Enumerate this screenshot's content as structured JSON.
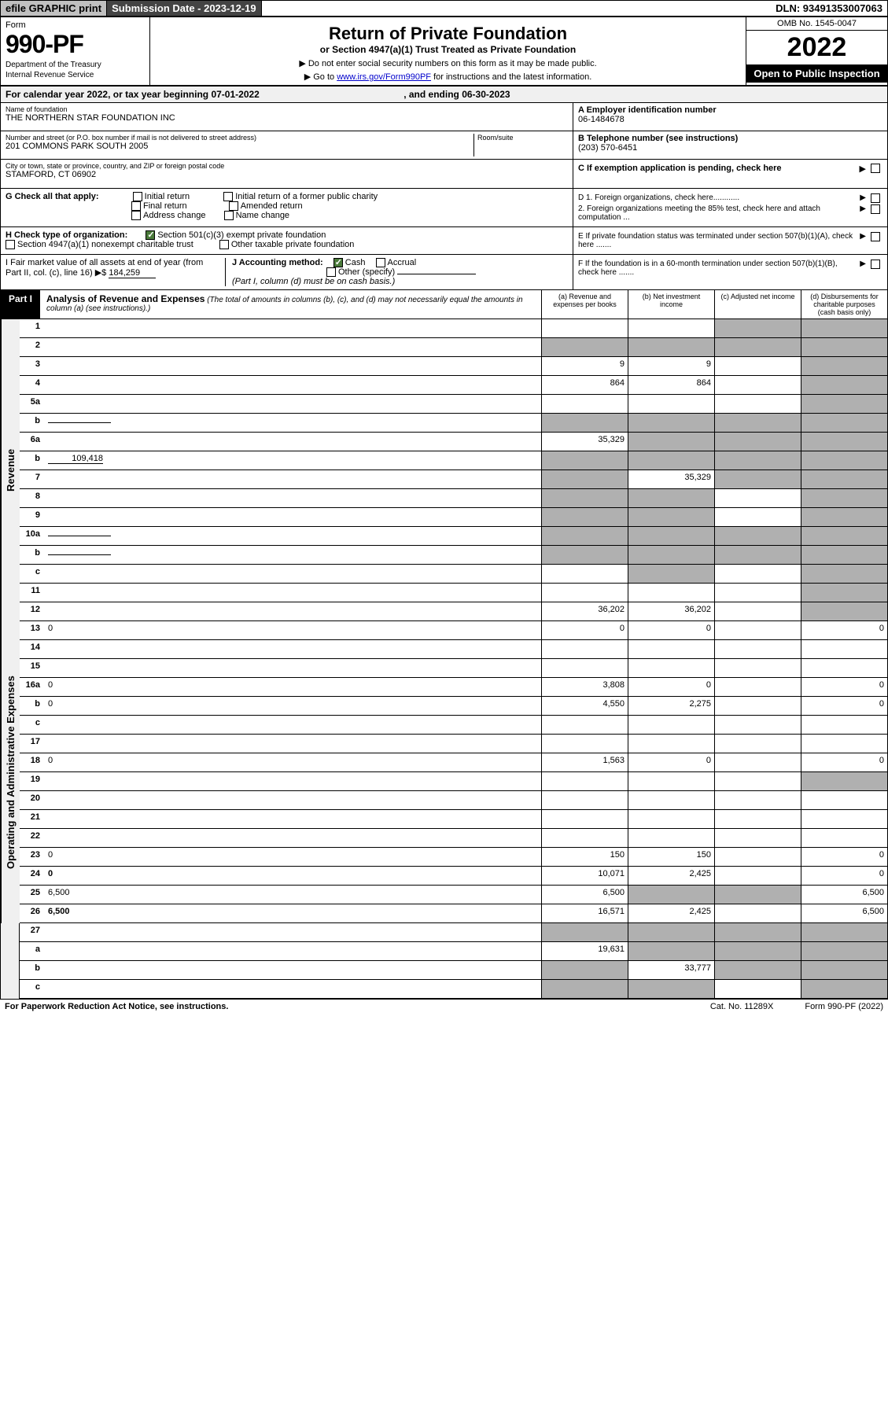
{
  "topbar": {
    "efile": "efile GRAPHIC print",
    "subdate_label": "Submission Date - 2023-12-19",
    "dln": "DLN: 93491353007063"
  },
  "header": {
    "form_word": "Form",
    "form_no": "990-PF",
    "dept": "Department of the Treasury",
    "irs": "Internal Revenue Service",
    "title": "Return of Private Foundation",
    "subtitle": "or Section 4947(a)(1) Trust Treated as Private Foundation",
    "instr1": "▶ Do not enter social security numbers on this form as it may be made public.",
    "instr2_pre": "▶ Go to ",
    "instr2_link": "www.irs.gov/Form990PF",
    "instr2_post": " for instructions and the latest information.",
    "omb": "OMB No. 1545-0047",
    "year": "2022",
    "open": "Open to Public Inspection"
  },
  "calyear": {
    "text_pre": "For calendar year 2022, or tax year beginning ",
    "begin": "07-01-2022",
    "text_mid": ", and ending ",
    "end": "06-30-2023"
  },
  "info": {
    "name_lbl": "Name of foundation",
    "name": "THE NORTHERN STAR FOUNDATION INC",
    "addr_lbl": "Number and street (or P.O. box number if mail is not delivered to street address)",
    "addr": "201 COMMONS PARK SOUTH 2005",
    "room_lbl": "Room/suite",
    "city_lbl": "City or town, state or province, country, and ZIP or foreign postal code",
    "city": "STAMFORD, CT  06902",
    "ein_lbl": "A Employer identification number",
    "ein": "06-1484678",
    "tel_lbl": "B Telephone number (see instructions)",
    "tel": "(203) 570-6451",
    "c_lbl": "C If exemption application is pending, check here",
    "d1": "D 1. Foreign organizations, check here............",
    "d2": "2. Foreign organizations meeting the 85% test, check here and attach computation ...",
    "e_lbl": "E If private foundation status was terminated under section 507(b)(1)(A), check here .......",
    "f_lbl": "F If the foundation is in a 60-month termination under section 507(b)(1)(B), check here ......."
  },
  "checks": {
    "g_lbl": "G Check all that apply:",
    "g_opts": [
      "Initial return",
      "Final return",
      "Address change",
      "Initial return of a former public charity",
      "Amended return",
      "Name change"
    ],
    "h_lbl": "H Check type of organization:",
    "h_opts": [
      "Section 501(c)(3) exempt private foundation",
      "Section 4947(a)(1) nonexempt charitable trust",
      "Other taxable private foundation"
    ],
    "i_lbl": "I Fair market value of all assets at end of year (from Part II, col. (c), line 16) ▶$",
    "i_val": "184,259",
    "j_lbl": "J Accounting method:",
    "j_opts": [
      "Cash",
      "Accrual",
      "Other (specify)"
    ],
    "j_note": "(Part I, column (d) must be on cash basis.)"
  },
  "part1": {
    "label": "Part I",
    "title": "Analysis of Revenue and Expenses",
    "note": "(The total of amounts in columns (b), (c), and (d) may not necessarily equal the amounts in column (a) (see instructions).)",
    "cols": [
      "(a) Revenue and expenses per books",
      "(b) Net investment income",
      "(c) Adjusted net income",
      "(d) Disbursements for charitable purposes (cash basis only)"
    ]
  },
  "sections": {
    "revenue": "Revenue",
    "expenses": "Operating and Administrative Expenses"
  },
  "rows": [
    {
      "n": "1",
      "d": "",
      "a": "",
      "b": "",
      "c": "",
      "shade": [
        "c",
        "d"
      ]
    },
    {
      "n": "2",
      "d": "",
      "a": "",
      "b": "",
      "c": "",
      "shade": [
        "a",
        "b",
        "c",
        "d"
      ],
      "bold_not": true
    },
    {
      "n": "3",
      "d": "",
      "a": "9",
      "b": "9",
      "c": "",
      "shade": [
        "d"
      ]
    },
    {
      "n": "4",
      "d": "",
      "a": "864",
      "b": "864",
      "c": "",
      "shade": [
        "d"
      ]
    },
    {
      "n": "5a",
      "d": "",
      "a": "",
      "b": "",
      "c": "",
      "shade": [
        "d"
      ]
    },
    {
      "n": "b",
      "d": "",
      "a": "",
      "b": "",
      "c": "",
      "shade": [
        "a",
        "b",
        "c",
        "d"
      ],
      "inline": true
    },
    {
      "n": "6a",
      "d": "",
      "a": "35,329",
      "b": "",
      "c": "",
      "shade": [
        "b",
        "c",
        "d"
      ]
    },
    {
      "n": "b",
      "d": "",
      "a": "",
      "b": "",
      "c": "",
      "shade": [
        "a",
        "b",
        "c",
        "d"
      ],
      "inline_val": "109,418"
    },
    {
      "n": "7",
      "d": "",
      "a": "",
      "b": "35,329",
      "c": "",
      "shade": [
        "a",
        "c",
        "d"
      ]
    },
    {
      "n": "8",
      "d": "",
      "a": "",
      "b": "",
      "c": "",
      "shade": [
        "a",
        "b",
        "d"
      ]
    },
    {
      "n": "9",
      "d": "",
      "a": "",
      "b": "",
      "c": "",
      "shade": [
        "a",
        "b",
        "d"
      ]
    },
    {
      "n": "10a",
      "d": "",
      "a": "",
      "b": "",
      "c": "",
      "shade": [
        "a",
        "b",
        "c",
        "d"
      ],
      "inline": true
    },
    {
      "n": "b",
      "d": "",
      "a": "",
      "b": "",
      "c": "",
      "shade": [
        "a",
        "b",
        "c",
        "d"
      ],
      "inline": true
    },
    {
      "n": "c",
      "d": "",
      "a": "",
      "b": "",
      "c": "",
      "shade": [
        "b",
        "d"
      ]
    },
    {
      "n": "11",
      "d": "",
      "a": "",
      "b": "",
      "c": "",
      "shade": [
        "d"
      ]
    },
    {
      "n": "12",
      "d": "",
      "a": "36,202",
      "b": "36,202",
      "c": "",
      "shade": [
        "d"
      ],
      "bold": true
    }
  ],
  "exp_rows": [
    {
      "n": "13",
      "d": "0",
      "a": "0",
      "b": "0",
      "c": ""
    },
    {
      "n": "14",
      "d": "",
      "a": "",
      "b": "",
      "c": ""
    },
    {
      "n": "15",
      "d": "",
      "a": "",
      "b": "",
      "c": ""
    },
    {
      "n": "16a",
      "d": "0",
      "a": "3,808",
      "b": "0",
      "c": ""
    },
    {
      "n": "b",
      "d": "0",
      "a": "4,550",
      "b": "2,275",
      "c": ""
    },
    {
      "n": "c",
      "d": "",
      "a": "",
      "b": "",
      "c": ""
    },
    {
      "n": "17",
      "d": "",
      "a": "",
      "b": "",
      "c": ""
    },
    {
      "n": "18",
      "d": "0",
      "a": "1,563",
      "b": "0",
      "c": ""
    },
    {
      "n": "19",
      "d": "",
      "a": "",
      "b": "",
      "c": "",
      "shade": [
        "d"
      ]
    },
    {
      "n": "20",
      "d": "",
      "a": "",
      "b": "",
      "c": ""
    },
    {
      "n": "21",
      "d": "",
      "a": "",
      "b": "",
      "c": ""
    },
    {
      "n": "22",
      "d": "",
      "a": "",
      "b": "",
      "c": ""
    },
    {
      "n": "23",
      "d": "0",
      "a": "150",
      "b": "150",
      "c": ""
    },
    {
      "n": "24",
      "d": "0",
      "a": "10,071",
      "b": "2,425",
      "c": "",
      "bold": true
    },
    {
      "n": "25",
      "d": "6,500",
      "a": "6,500",
      "b": "",
      "c": "",
      "shade": [
        "b",
        "c"
      ]
    },
    {
      "n": "26",
      "d": "6,500",
      "a": "16,571",
      "b": "2,425",
      "c": "",
      "bold": true
    }
  ],
  "bottom_rows": [
    {
      "n": "27",
      "d": "",
      "a": "",
      "b": "",
      "c": "",
      "shade": [
        "a",
        "b",
        "c",
        "d"
      ]
    },
    {
      "n": "a",
      "d": "",
      "a": "19,631",
      "b": "",
      "c": "",
      "shade": [
        "b",
        "c",
        "d"
      ],
      "bold": true
    },
    {
      "n": "b",
      "d": "",
      "a": "",
      "b": "33,777",
      "c": "",
      "shade": [
        "a",
        "c",
        "d"
      ],
      "bold": true
    },
    {
      "n": "c",
      "d": "",
      "a": "",
      "b": "",
      "c": "",
      "shade": [
        "a",
        "b",
        "d"
      ],
      "bold": true
    }
  ],
  "footer": {
    "left": "For Paperwork Reduction Act Notice, see instructions.",
    "mid": "Cat. No. 11289X",
    "right": "Form 990-PF (2022)"
  }
}
